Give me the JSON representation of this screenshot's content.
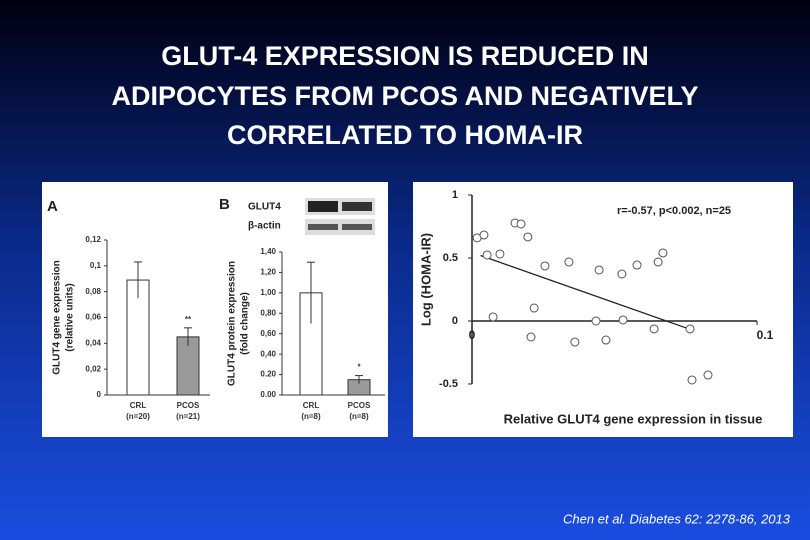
{
  "slide": {
    "title_lines": [
      "GLUT-4 EXPRESSION IS REDUCED IN",
      "ADIPOCYTES FROM PCOS AND NEGATIVELY",
      "CORRELATED TO HOMA-IR"
    ],
    "citation": "Chen et al. Diabetes 62: 2278-86, 2013"
  },
  "chart_data": [
    {
      "type": "bar",
      "panel": "A",
      "ylabel": [
        "GLUT4 gene expression",
        "(relative units)"
      ],
      "categories": [
        "CRL",
        "PCOS"
      ],
      "category_notes": [
        "(n=20)",
        "(n=21)"
      ],
      "values": [
        0.089,
        0.045
      ],
      "errors": [
        0.014,
        0.007
      ],
      "significance": [
        null,
        "**"
      ],
      "colors": [
        "#ffffff",
        "#9a9a9a"
      ],
      "ylim": [
        0,
        0.12
      ],
      "yticks": [
        0,
        {
          "value": 0.02,
          "label": "0,02"
        },
        {
          "value": 0.04,
          "label": "0,04"
        },
        {
          "value": 0.06,
          "label": "0,06"
        },
        {
          "value": 0.08,
          "label": "0,08"
        },
        {
          "value": 0.1,
          "label": "0,1"
        },
        {
          "value": 0.12,
          "label": "0,12"
        }
      ]
    },
    {
      "type": "bar",
      "panel": "B",
      "ylabel": [
        "GLUT4 protein expression",
        "(fold change)"
      ],
      "blot_labels": [
        "GLUT4",
        "β-actin"
      ],
      "categories": [
        "CRL",
        "PCOS"
      ],
      "category_notes": [
        "(n=8)",
        "(n=8)"
      ],
      "values": [
        1.0,
        0.15
      ],
      "errors": [
        0.3,
        0.04
      ],
      "significance": [
        null,
        "*"
      ],
      "colors": [
        "#ffffff",
        "#9a9a9a"
      ],
      "ylim": [
        0,
        1.4
      ],
      "yticks": [
        {
          "value": 0,
          "label": "0.00"
        },
        {
          "value": 0.2,
          "label": "0.20"
        },
        {
          "value": 0.4,
          "label": "0,40"
        },
        {
          "value": 0.6,
          "label": "0,60"
        },
        {
          "value": 0.8,
          "label": "0,80"
        },
        {
          "value": 1.0,
          "label": "1,00"
        },
        {
          "value": 1.2,
          "label": "1,20"
        },
        {
          "value": 1.4,
          "label": "1,40"
        }
      ]
    },
    {
      "type": "scatter",
      "ylabel": "Log (HOMA-IR)",
      "xlabel": "Relative GLUT4 gene expression in tissue",
      "annotation": "r=-0.57, p<0.002, n=25",
      "x": [
        0.0018,
        0.0042,
        0.0053,
        0.0074,
        0.0098,
        0.0151,
        0.0172,
        0.0196,
        0.0207,
        0.0218,
        0.0256,
        0.034,
        0.0361,
        0.0435,
        0.0446,
        0.047,
        0.0526,
        0.053,
        0.0579,
        0.0639,
        0.0653,
        0.067,
        0.0765,
        0.0772,
        0.0828
      ],
      "y": [
        0.66,
        0.683,
        0.524,
        0.032,
        0.532,
        0.778,
        0.77,
        0.667,
        -0.127,
        0.103,
        0.437,
        0.468,
        -0.167,
        0.0,
        0.405,
        -0.151,
        0.373,
        0.008,
        0.444,
        -0.063,
        0.468,
        0.54,
        -0.063,
        -0.468,
        -0.429
      ],
      "trendline": {
        "x": [
          0.003,
          0.077
        ],
        "y": [
          0.52,
          -0.07
        ]
      },
      "xlim": [
        0,
        0.1
      ],
      "ylim": [
        -0.5,
        1
      ],
      "xticks": [
        0,
        0.1
      ],
      "yticks": [
        -0.5,
        0,
        0.5,
        1
      ]
    }
  ]
}
